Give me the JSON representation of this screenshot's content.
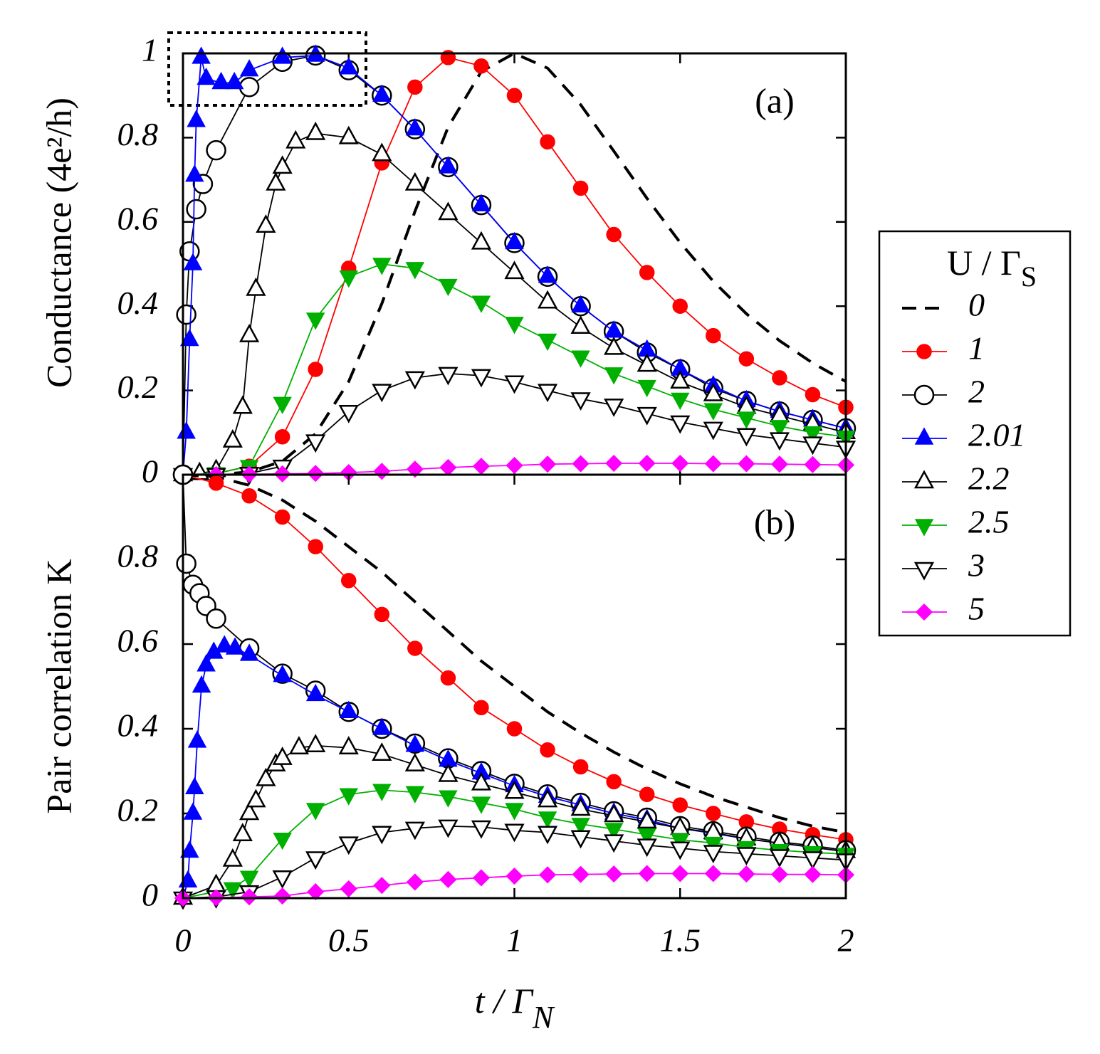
{
  "chart_data": [
    {
      "type": "line",
      "annotation": "(a)",
      "ylabel": "Conductance (4e²/h)",
      "xlim": [
        0,
        2
      ],
      "xticks": [
        0,
        0.5,
        1,
        1.5,
        2
      ],
      "xtick_labels": false,
      "ylim": [
        0,
        1
      ],
      "yticks": [
        0,
        0.2,
        0.4,
        0.6,
        0.8,
        1
      ],
      "legend": "right",
      "legend_title": "U / Γ",
      "legend_title_sub": "S",
      "x": [
        0,
        0.1,
        0.2,
        0.3,
        0.4,
        0.5,
        0.6,
        0.7,
        0.8,
        0.9,
        1,
        1.1,
        1.2,
        1.3,
        1.4,
        1.5,
        1.6,
        1.7,
        1.8,
        1.9,
        2
      ],
      "series": [
        {
          "name": "0",
          "color": "#000000",
          "marker": "none",
          "dash": true,
          "values": [
            0,
            0.0004,
            0.0064,
            0.032,
            0.097,
            0.221,
            0.406,
            0.625,
            0.825,
            0.957,
            1,
            0.965,
            0.878,
            0.768,
            0.656,
            0.551,
            0.459,
            0.382,
            0.318,
            0.265,
            0.221
          ]
        },
        {
          "name": "1",
          "color": "#ff0000",
          "marker": "circle",
          "values": [
            0,
            0.003,
            0.02,
            0.09,
            0.25,
            0.49,
            0.74,
            0.92,
            0.99,
            0.97,
            0.9,
            0.79,
            0.68,
            0.57,
            0.48,
            0.4,
            0.33,
            0.275,
            0.23,
            0.19,
            0.16
          ]
        },
        {
          "name": "2",
          "color": "#000000",
          "marker": "circle-open",
          "x": [
            0,
            0.01,
            0.02,
            0.04,
            0.06,
            0.1,
            0.2,
            0.3,
            0.4,
            0.5,
            0.6,
            0.7,
            0.8,
            0.9,
            1,
            1.1,
            1.2,
            1.3,
            1.4,
            1.5,
            1.6,
            1.7,
            1.8,
            1.9,
            2
          ],
          "values": [
            0,
            0.38,
            0.53,
            0.63,
            0.69,
            0.77,
            0.92,
            0.98,
            0.995,
            0.96,
            0.9,
            0.82,
            0.73,
            0.64,
            0.55,
            0.47,
            0.4,
            0.34,
            0.29,
            0.25,
            0.205,
            0.175,
            0.15,
            0.13,
            0.11
          ]
        },
        {
          "name": "2.01",
          "color": "#0000ff",
          "marker": "triangle-up",
          "x": [
            0,
            0.01,
            0.02,
            0.03,
            0.035,
            0.04,
            0.055,
            0.07,
            0.115,
            0.155,
            0.2,
            0.3,
            0.4,
            0.5,
            0.6,
            0.7,
            0.8,
            0.9,
            1,
            1.1,
            1.2,
            1.3,
            1.4,
            1.5,
            1.6,
            1.7,
            1.8,
            1.9,
            2
          ],
          "values": [
            0,
            0.1,
            0.32,
            0.5,
            0.71,
            0.84,
            0.99,
            0.94,
            0.93,
            0.93,
            0.96,
            0.99,
            0.995,
            0.965,
            0.9,
            0.82,
            0.73,
            0.64,
            0.55,
            0.47,
            0.4,
            0.34,
            0.295,
            0.25,
            0.21,
            0.175,
            0.15,
            0.13,
            0.11
          ]
        },
        {
          "name": "2.2",
          "color": "#000000",
          "marker": "triangle-up-open",
          "x": [
            0,
            0.05,
            0.1,
            0.15,
            0.18,
            0.2,
            0.22,
            0.25,
            0.28,
            0.3,
            0.34,
            0.4,
            0.5,
            0.6,
            0.7,
            0.8,
            0.9,
            1,
            1.1,
            1.2,
            1.3,
            1.4,
            1.5,
            1.6,
            1.7,
            1.8,
            1.9,
            2
          ],
          "values": [
            0,
            0.003,
            0.01,
            0.08,
            0.16,
            0.33,
            0.44,
            0.59,
            0.69,
            0.73,
            0.79,
            0.81,
            0.8,
            0.76,
            0.69,
            0.62,
            0.55,
            0.48,
            0.41,
            0.35,
            0.3,
            0.26,
            0.22,
            0.19,
            0.16,
            0.14,
            0.12,
            0.1
          ]
        },
        {
          "name": "2.5",
          "color": "#00b000",
          "marker": "triangle-down",
          "values": [
            0,
            0.003,
            0.02,
            0.17,
            0.37,
            0.47,
            0.5,
            0.49,
            0.45,
            0.41,
            0.36,
            0.32,
            0.28,
            0.24,
            0.21,
            0.18,
            0.155,
            0.135,
            0.115,
            0.1,
            0.09
          ]
        },
        {
          "name": "3",
          "color": "#000000",
          "marker": "triangle-down-open",
          "values": [
            0,
            0,
            0.003,
            0.02,
            0.08,
            0.15,
            0.2,
            0.23,
            0.24,
            0.235,
            0.22,
            0.2,
            0.18,
            0.165,
            0.145,
            0.125,
            0.11,
            0.095,
            0.085,
            0.075,
            0.065
          ]
        },
        {
          "name": "5",
          "color": "#ff00ff",
          "marker": "diamond",
          "values": [
            0,
            0,
            0.001,
            0.002,
            0.003,
            0.005,
            0.008,
            0.013,
            0.017,
            0.02,
            0.022,
            0.025,
            0.026,
            0.027,
            0.027,
            0.027,
            0.026,
            0.026,
            0.025,
            0.024,
            0.023
          ]
        }
      ]
    },
    {
      "type": "line",
      "annotation": "(b)",
      "ylabel": "Pair correlation K",
      "xlabel": "t / Γ",
      "xlabel_sub": "N",
      "xlim": [
        0,
        2
      ],
      "xticks": [
        0,
        0.5,
        1,
        1.5,
        2
      ],
      "ylim": [
        0,
        1
      ],
      "yticks": [
        0,
        0.2,
        0.4,
        0.6,
        0.8
      ],
      "x": [
        0,
        0.1,
        0.2,
        0.3,
        0.4,
        0.5,
        0.6,
        0.7,
        0.8,
        0.9,
        1,
        1.1,
        1.2,
        1.3,
        1.4,
        1.5,
        1.6,
        1.7,
        1.8,
        1.9,
        2
      ],
      "series": [
        {
          "color": "#000000",
          "marker": "none",
          "dash": true,
          "values": [
            1,
            0.995,
            0.975,
            0.94,
            0.89,
            0.83,
            0.77,
            0.7,
            0.63,
            0.56,
            0.5,
            0.44,
            0.39,
            0.345,
            0.305,
            0.27,
            0.24,
            0.215,
            0.19,
            0.17,
            0.155
          ]
        },
        {
          "color": "#ff0000",
          "marker": "circle",
          "values": [
            1,
            0.98,
            0.95,
            0.9,
            0.83,
            0.75,
            0.67,
            0.59,
            0.52,
            0.45,
            0.4,
            0.35,
            0.31,
            0.275,
            0.245,
            0.22,
            0.2,
            0.18,
            0.163,
            0.15,
            0.138
          ]
        },
        {
          "color": "#000000",
          "marker": "circle-open",
          "x": [
            0,
            0.01,
            0.03,
            0.05,
            0.07,
            0.1,
            0.2,
            0.3,
            0.4,
            0.5,
            0.6,
            0.7,
            0.8,
            0.9,
            1,
            1.1,
            1.2,
            1.3,
            1.4,
            1.5,
            1.6,
            1.7,
            1.8,
            1.9,
            2
          ],
          "values": [
            1,
            0.79,
            0.74,
            0.72,
            0.69,
            0.66,
            0.59,
            0.53,
            0.49,
            0.44,
            0.4,
            0.365,
            0.33,
            0.3,
            0.27,
            0.245,
            0.225,
            0.205,
            0.19,
            0.17,
            0.158,
            0.145,
            0.133,
            0.124,
            0.113
          ]
        },
        {
          "color": "#0000ff",
          "marker": "triangle-up",
          "x": [
            0,
            0.015,
            0.02,
            0.03,
            0.035,
            0.043,
            0.056,
            0.07,
            0.093,
            0.125,
            0.157,
            0.2,
            0.3,
            0.4,
            0.5,
            0.6,
            0.7,
            0.8,
            0.9,
            1,
            1.1,
            1.2,
            1.3,
            1.4,
            1.5,
            1.6,
            1.7,
            1.8,
            1.9,
            2
          ],
          "values": [
            0,
            0.04,
            0.11,
            0.2,
            0.26,
            0.37,
            0.5,
            0.55,
            0.58,
            0.595,
            0.59,
            0.575,
            0.525,
            0.48,
            0.44,
            0.4,
            0.36,
            0.325,
            0.295,
            0.265,
            0.24,
            0.22,
            0.2,
            0.185,
            0.165,
            0.153,
            0.14,
            0.13,
            0.12,
            0.11
          ]
        },
        {
          "color": "#000000",
          "marker": "triangle-up-open",
          "x": [
            0,
            0.1,
            0.15,
            0.18,
            0.2,
            0.22,
            0.25,
            0.28,
            0.3,
            0.35,
            0.4,
            0.5,
            0.6,
            0.7,
            0.8,
            0.9,
            1,
            1.1,
            1.2,
            1.3,
            1.4,
            1.5,
            1.6,
            1.7,
            1.8,
            1.9,
            2
          ],
          "values": [
            0,
            0.03,
            0.09,
            0.15,
            0.2,
            0.23,
            0.28,
            0.315,
            0.33,
            0.355,
            0.36,
            0.355,
            0.34,
            0.315,
            0.29,
            0.27,
            0.25,
            0.23,
            0.21,
            0.195,
            0.18,
            0.165,
            0.155,
            0.14,
            0.13,
            0.12,
            0.11
          ]
        },
        {
          "color": "#00b000",
          "marker": "triangle-down",
          "x": [
            0,
            0.15,
            0.2,
            0.3,
            0.4,
            0.5,
            0.6,
            0.7,
            0.8,
            0.9,
            1,
            1.1,
            1.2,
            1.3,
            1.4,
            1.5,
            1.6,
            1.7,
            1.8,
            1.9,
            2
          ],
          "values": [
            0,
            0.023,
            0.05,
            0.14,
            0.21,
            0.245,
            0.255,
            0.25,
            0.24,
            0.225,
            0.21,
            0.19,
            0.175,
            0.163,
            0.15,
            0.138,
            0.13,
            0.12,
            0.113,
            0.108,
            0.104
          ]
        },
        {
          "color": "#000000",
          "marker": "triangle-down-open",
          "values": [
            0,
            0.003,
            0.015,
            0.05,
            0.095,
            0.13,
            0.155,
            0.165,
            0.17,
            0.168,
            0.16,
            0.155,
            0.145,
            0.135,
            0.125,
            0.118,
            0.11,
            0.105,
            0.1,
            0.095,
            0.09
          ]
        },
        {
          "color": "#ff00ff",
          "marker": "diamond",
          "values": [
            0,
            0.001,
            0.003,
            0.005,
            0.015,
            0.022,
            0.03,
            0.038,
            0.044,
            0.048,
            0.052,
            0.055,
            0.056,
            0.057,
            0.058,
            0.058,
            0.058,
            0.057,
            0.056,
            0.056,
            0.055
          ]
        }
      ]
    }
  ]
}
